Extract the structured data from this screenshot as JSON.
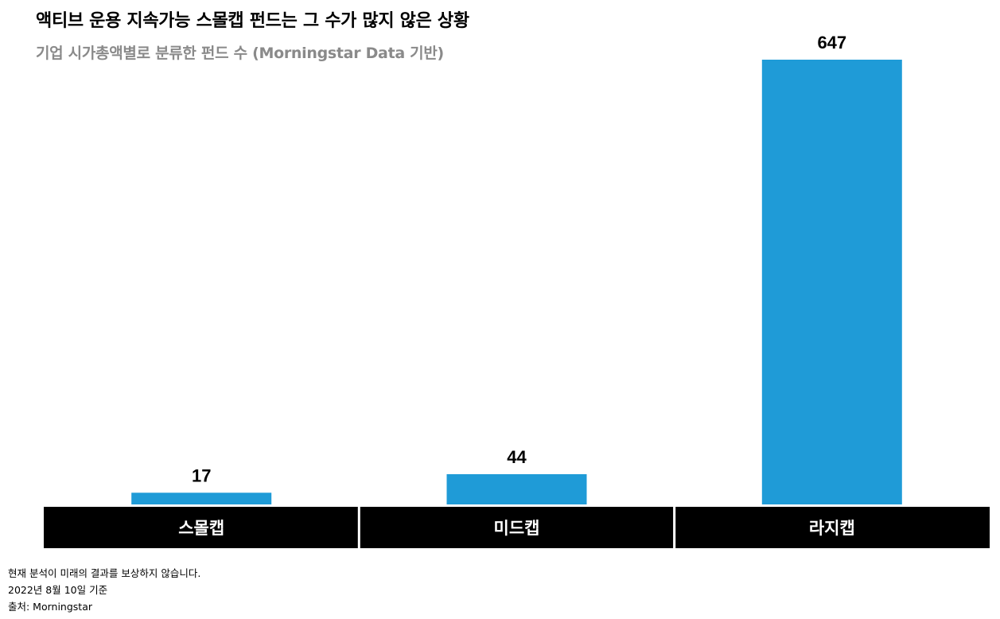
{
  "title": "액티브 운용 지속가능 스몰캡 펀드는 그 수가 많지 않은 상황",
  "subtitle": "기업 시가총액별로 분류한 펀드 수 (Morningstar Data 기반)",
  "chart_data": {
    "type": "bar",
    "categories": [
      "스몰캡",
      "미드캡",
      "라지캡"
    ],
    "values": [
      17,
      44,
      647
    ],
    "data_labels": [
      "17",
      "44",
      "647"
    ],
    "title": "액티브 운용 지속가능 스몰캡 펀드는 그 수가 많지 않은 상황",
    "subtitle": "기업 시가총액별로 분류한 펀드 수 (Morningstar Data 기반)",
    "ylim": [
      0,
      647
    ],
    "grid": false,
    "legend": "none",
    "bar_color": "#1f9bd7",
    "category_band_color": "#000000",
    "category_text_color": "#ffffff"
  },
  "footnotes": [
    "현재 분석이 미래의 결과를 보상하지 않습니다.",
    "2022년 8월 10일 기준",
    "출처: Morningstar"
  ]
}
